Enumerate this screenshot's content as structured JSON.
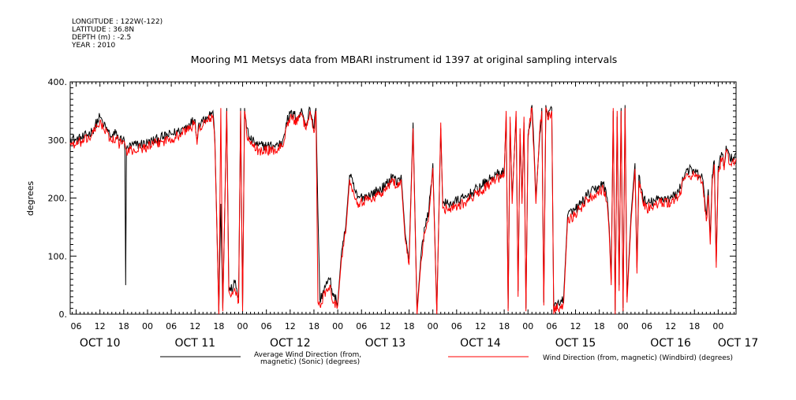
{
  "header": {
    "meta_lines": [
      "LONGITUDE : 122W(-122)",
      "LATITUDE : 36.8N",
      "DEPTH (m) : -2.5",
      "YEAR : 2010"
    ],
    "title": "Mooring M1 Metsys data from MBARI instrument id 1397 at original sampling intervals"
  },
  "chart_data": {
    "type": "line",
    "title": "Mooring M1 Metsys data from MBARI instrument id 1397 at original sampling intervals",
    "xlabel": "",
    "ylabel": "degrees",
    "ylim": [
      0,
      400
    ],
    "xlim": [
      4.5,
      172.5
    ],
    "x_unit": "hours since 2010-10-10 00:00",
    "yticks": [
      0,
      100,
      200,
      300,
      400
    ],
    "ytick_labels": [
      "0.",
      "100.",
      "200.",
      "300.",
      "400."
    ],
    "x_hour_labels": [
      "06",
      "12",
      "18",
      "00",
      "06",
      "12",
      "18",
      "00",
      "06",
      "12",
      "18",
      "00",
      "06",
      "12",
      "18",
      "00",
      "06",
      "12",
      "18",
      "00",
      "06",
      "12",
      "18",
      "00",
      "06",
      "12",
      "18",
      "00"
    ],
    "x_day_labels": [
      "OCT 10",
      "OCT 11",
      "OCT 12",
      "OCT 13",
      "OCT 14",
      "OCT 15",
      "OCT 16",
      "OCT 17"
    ],
    "grid": false,
    "legend_position": "bottom",
    "colors": {
      "sonic": "#000000",
      "windbird": "#ff0000",
      "axes": "#000000"
    },
    "series": [
      {
        "name": "Average Wind Direction (from, magnetic) (Sonic) (degrees)",
        "color": "#000000",
        "keypoints": [
          [
            4.5,
            305
          ],
          [
            6,
            300
          ],
          [
            8,
            305
          ],
          [
            10,
            315
          ],
          [
            12,
            340
          ],
          [
            13,
            325
          ],
          [
            15,
            305
          ],
          [
            16,
            312
          ],
          [
            17,
            300
          ],
          [
            18,
            305
          ],
          [
            18.3,
            280
          ],
          [
            18.5,
            50
          ],
          [
            18.7,
            285
          ],
          [
            20,
            290
          ],
          [
            24,
            295
          ],
          [
            28,
            305
          ],
          [
            32,
            315
          ],
          [
            34,
            325
          ],
          [
            36,
            335
          ],
          [
            36.5,
            300
          ],
          [
            37,
            330
          ],
          [
            39,
            340
          ],
          [
            40.5,
            350
          ],
          [
            41,
            300
          ],
          [
            42,
            5
          ],
          [
            42.5,
            190
          ],
          [
            43,
            10
          ],
          [
            44,
            355
          ],
          [
            44.5,
            50
          ],
          [
            45,
            40
          ],
          [
            46,
            55
          ],
          [
            47,
            30
          ],
          [
            47.5,
            355
          ],
          [
            48,
            10
          ],
          [
            48.5,
            355
          ],
          [
            49,
            320
          ],
          [
            50,
            300
          ],
          [
            52,
            290
          ],
          [
            56,
            290
          ],
          [
            58,
            295
          ],
          [
            59,
            330
          ],
          [
            60,
            345
          ],
          [
            62,
            340
          ],
          [
            63,
            350
          ],
          [
            64,
            325
          ],
          [
            65,
            355
          ],
          [
            66,
            320
          ],
          [
            66.5,
            355
          ],
          [
            67,
            175
          ],
          [
            67.5,
            25
          ],
          [
            69,
            50
          ],
          [
            70,
            60
          ],
          [
            71,
            30
          ],
          [
            72,
            20
          ],
          [
            73,
            110
          ],
          [
            74,
            150
          ],
          [
            75,
            240
          ],
          [
            77,
            200
          ],
          [
            80,
            205
          ],
          [
            84,
            220
          ],
          [
            86,
            240
          ],
          [
            87,
            225
          ],
          [
            88,
            240
          ],
          [
            89,
            140
          ],
          [
            90,
            95
          ],
          [
            91,
            330
          ],
          [
            92,
            5
          ],
          [
            93,
            100
          ],
          [
            94,
            150
          ],
          [
            95,
            180
          ],
          [
            96,
            260
          ],
          [
            97,
            5
          ],
          [
            98,
            320
          ],
          [
            98.5,
            190
          ],
          [
            100,
            190
          ],
          [
            104,
            200
          ],
          [
            108,
            220
          ],
          [
            112,
            240
          ],
          [
            114,
            245
          ],
          [
            114.5,
            340
          ],
          [
            115,
            10
          ],
          [
            115.5,
            330
          ],
          [
            116,
            200
          ],
          [
            117,
            340
          ],
          [
            117.5,
            40
          ],
          [
            118,
            310
          ],
          [
            118.5,
            200
          ],
          [
            119,
            330
          ],
          [
            119.5,
            10
          ],
          [
            120,
            300
          ],
          [
            121,
            360
          ],
          [
            121.5,
            290
          ],
          [
            122,
            200
          ],
          [
            123,
            310
          ],
          [
            123.5,
            355
          ],
          [
            124,
            20
          ],
          [
            124.5,
            360
          ],
          [
            125,
            340
          ],
          [
            126,
            355
          ],
          [
            126.5,
            5
          ],
          [
            127,
            20
          ],
          [
            128,
            15
          ],
          [
            129,
            30
          ],
          [
            130,
            170
          ],
          [
            132,
            180
          ],
          [
            135,
            205
          ],
          [
            138,
            220
          ],
          [
            139,
            225
          ],
          [
            140,
            200
          ],
          [
            140.5,
            150
          ],
          [
            141,
            60
          ],
          [
            141.5,
            350
          ],
          [
            142,
            5
          ],
          [
            142.5,
            340
          ],
          [
            143,
            50
          ],
          [
            143.5,
            355
          ],
          [
            144,
            10
          ],
          [
            144.5,
            360
          ],
          [
            145,
            30
          ],
          [
            146,
            170
          ],
          [
            147,
            260
          ],
          [
            147.5,
            80
          ],
          [
            148,
            240
          ],
          [
            149,
            200
          ],
          [
            150,
            190
          ],
          [
            152,
            195
          ],
          [
            154,
            200
          ],
          [
            156,
            200
          ],
          [
            158,
            210
          ],
          [
            160,
            250
          ],
          [
            162,
            245
          ],
          [
            164,
            235
          ],
          [
            165,
            170
          ],
          [
            165.5,
            215
          ],
          [
            166,
            130
          ],
          [
            166.5,
            240
          ],
          [
            167,
            265
          ],
          [
            167.5,
            90
          ],
          [
            168,
            255
          ],
          [
            169,
            275
          ],
          [
            169.5,
            255
          ],
          [
            170,
            290
          ],
          [
            171,
            265
          ],
          [
            172.5,
            275
          ]
        ]
      },
      {
        "name": "Wind Direction (from, magnetic) (Windbird) (degrees)",
        "color": "#ff0000",
        "keypoints": [
          [
            4.5,
            295
          ],
          [
            6,
            292
          ],
          [
            8,
            298
          ],
          [
            10,
            308
          ],
          [
            12,
            332
          ],
          [
            13,
            318
          ],
          [
            15,
            298
          ],
          [
            16,
            305
          ],
          [
            17,
            292
          ],
          [
            18,
            298
          ],
          [
            18.5,
            285
          ],
          [
            19,
            278
          ],
          [
            20,
            282
          ],
          [
            24,
            288
          ],
          [
            28,
            298
          ],
          [
            32,
            308
          ],
          [
            34,
            318
          ],
          [
            36,
            328
          ],
          [
            36.5,
            292
          ],
          [
            37,
            322
          ],
          [
            39,
            332
          ],
          [
            40.5,
            342
          ],
          [
            41,
            292
          ],
          [
            42,
            0
          ],
          [
            42.5,
            355
          ],
          [
            43,
            5
          ],
          [
            44,
            350
          ],
          [
            44.5,
            40
          ],
          [
            45,
            30
          ],
          [
            46,
            45
          ],
          [
            47,
            20
          ],
          [
            47.5,
            350
          ],
          [
            48,
            5
          ],
          [
            48.5,
            350
          ],
          [
            49,
            312
          ],
          [
            50,
            292
          ],
          [
            52,
            282
          ],
          [
            56,
            282
          ],
          [
            58,
            288
          ],
          [
            59,
            322
          ],
          [
            60,
            338
          ],
          [
            62,
            332
          ],
          [
            63,
            342
          ],
          [
            64,
            318
          ],
          [
            65,
            350
          ],
          [
            66,
            312
          ],
          [
            66.5,
            350
          ],
          [
            67,
            20
          ],
          [
            67.5,
            15
          ],
          [
            69,
            40
          ],
          [
            70,
            50
          ],
          [
            71,
            20
          ],
          [
            72,
            15
          ],
          [
            73,
            100
          ],
          [
            74,
            140
          ],
          [
            75,
            232
          ],
          [
            77,
            192
          ],
          [
            80,
            198
          ],
          [
            84,
            212
          ],
          [
            86,
            232
          ],
          [
            87,
            218
          ],
          [
            88,
            232
          ],
          [
            89,
            130
          ],
          [
            90,
            85
          ],
          [
            91,
            320
          ],
          [
            92,
            0
          ],
          [
            93,
            90
          ],
          [
            94,
            140
          ],
          [
            95,
            170
          ],
          [
            96,
            252
          ],
          [
            97,
            0
          ],
          [
            98,
            330
          ],
          [
            98.5,
            182
          ],
          [
            100,
            182
          ],
          [
            104,
            192
          ],
          [
            108,
            212
          ],
          [
            112,
            232
          ],
          [
            114,
            238
          ],
          [
            114.5,
            350
          ],
          [
            115,
            5
          ],
          [
            115.5,
            340
          ],
          [
            116,
            190
          ],
          [
            117,
            350
          ],
          [
            117.5,
            30
          ],
          [
            118,
            320
          ],
          [
            118.5,
            190
          ],
          [
            119,
            340
          ],
          [
            119.5,
            5
          ],
          [
            120,
            310
          ],
          [
            121,
            355
          ],
          [
            121.5,
            280
          ],
          [
            122,
            190
          ],
          [
            123,
            320
          ],
          [
            123.5,
            350
          ],
          [
            124,
            15
          ],
          [
            124.5,
            355
          ],
          [
            125,
            335
          ],
          [
            126,
            350
          ],
          [
            126.5,
            0
          ],
          [
            127,
            15
          ],
          [
            128,
            10
          ],
          [
            129,
            20
          ],
          [
            130,
            162
          ],
          [
            132,
            172
          ],
          [
            135,
            198
          ],
          [
            138,
            212
          ],
          [
            139,
            218
          ],
          [
            140,
            192
          ],
          [
            140.5,
            140
          ],
          [
            141,
            50
          ],
          [
            141.5,
            355
          ],
          [
            142,
            0
          ],
          [
            142.5,
            350
          ],
          [
            143,
            40
          ],
          [
            143.5,
            350
          ],
          [
            144,
            5
          ],
          [
            144.5,
            355
          ],
          [
            145,
            20
          ],
          [
            146,
            160
          ],
          [
            147,
            250
          ],
          [
            147.5,
            70
          ],
          [
            148,
            230
          ],
          [
            149,
            192
          ],
          [
            150,
            182
          ],
          [
            152,
            188
          ],
          [
            154,
            192
          ],
          [
            156,
            192
          ],
          [
            158,
            202
          ],
          [
            160,
            242
          ],
          [
            162,
            238
          ],
          [
            164,
            228
          ],
          [
            165,
            160
          ],
          [
            165.5,
            205
          ],
          [
            166,
            120
          ],
          [
            166.5,
            232
          ],
          [
            167,
            258
          ],
          [
            167.5,
            80
          ],
          [
            168,
            248
          ],
          [
            169,
            268
          ],
          [
            169.5,
            248
          ],
          [
            170,
            282
          ],
          [
            171,
            258
          ],
          [
            172.5,
            268
          ]
        ]
      }
    ]
  },
  "legend": {
    "items": [
      {
        "label_line1": "Average Wind Direction (from,",
        "label_line2": "magnetic) (Sonic) (degrees)",
        "color": "#000000"
      },
      {
        "label_line1": "Wind Direction (from, magnetic) (Windbird) (degrees)",
        "label_line2": "",
        "color": "#ff0000"
      }
    ]
  }
}
